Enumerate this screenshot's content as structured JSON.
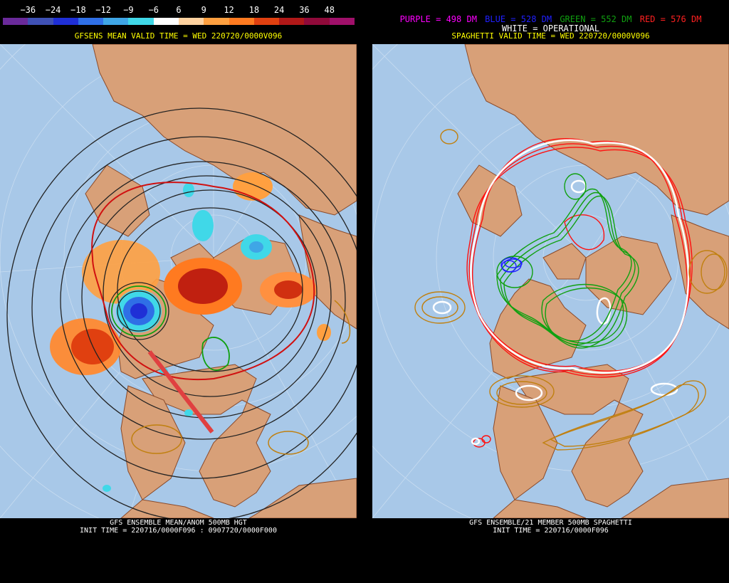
{
  "left": {
    "colorbar_labels": [
      "−36",
      "−24",
      "−18",
      "−12",
      "−9",
      "−6",
      "6",
      "9",
      "12",
      "18",
      "24",
      "36",
      "48"
    ],
    "colorbar_colors": [
      "#6a2a9a",
      "#3f51b5",
      "#1f2fd6",
      "#2f6fe6",
      "#3fa6e6",
      "#40d8e8",
      "#ffffff",
      "#ffd2a0",
      "#ffa040",
      "#ff7a20",
      "#e04010",
      "#b01818",
      "#900a3a",
      "#a0106a"
    ],
    "valid_time": "GFSENS MEAN VALID TIME = WED 220720/0000V096",
    "footer_line1": "GFS ENSEMBLE MEAN/ANOM 500MB HGT",
    "footer_line2": "INIT TIME = 220716/0000F096 : 0907720/0000F000"
  },
  "right": {
    "legend": [
      {
        "text": "PURPLE = 498 DM",
        "color": "#ff00ff"
      },
      {
        "text": "BLUE = 528 DM",
        "color": "#2020ff"
      },
      {
        "text": "GREEN = 552 DM",
        "color": "#10a010"
      },
      {
        "text": "RED = 576 DM",
        "color": "#ff2020"
      }
    ],
    "operational": "WHITE = OPERATIONAL",
    "valid_time": "SPAGHETTI VALID TIME = WED 220720/0000V096",
    "footer_line1": "GFS ENSEMBLE/21 MEMBER 500MB SPAGHETTI",
    "footer_line2": "INIT TIME = 220716/0000F096"
  },
  "colors": {
    "ocean": "#a8c8e8",
    "land": "#d8a078",
    "border": "#8a4a2a"
  }
}
